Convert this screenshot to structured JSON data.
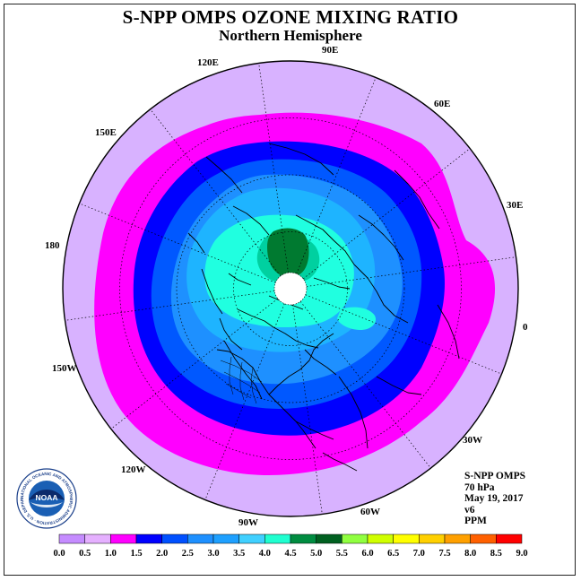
{
  "title": "S-NPP OMPS OZONE MIXING RATIO",
  "subtitle": "Northern Hemisphere",
  "logo_text": "NOAA",
  "logo_ring_text": "NATIONAL OCEANIC AND ATMOSPHERIC ADMINISTRATION · U.S. DEPARTMENT OF COMMERCE",
  "longitude_labels": {
    "lon_90E": "90E",
    "lon_60E": "60E",
    "lon_30E": "30E",
    "lon_0": "0",
    "lon_30W": "30W",
    "lon_60W": "60W",
    "lon_90W": "90W",
    "lon_120W": "120W",
    "lon_150W": "150W",
    "lon_180": "180",
    "lon_150E": "150E",
    "lon_120E": "120E"
  },
  "info": {
    "instrument": "S-NPP OMPS",
    "level": "70 hPa",
    "date": "May 19, 2017",
    "version": "v6",
    "units": "PPM"
  },
  "colorbar": {
    "tick_labels": [
      "0.0",
      "0.5",
      "1.0",
      "1.5",
      "2.0",
      "2.5",
      "3.0",
      "3.5",
      "4.0",
      "4.5",
      "5.0",
      "5.5",
      "6.0",
      "6.5",
      "7.0",
      "7.5",
      "8.0",
      "8.5",
      "9.0"
    ],
    "colors": [
      "#c58cff",
      "#e5b0ff",
      "#ff00ff",
      "#0000ff",
      "#0050ff",
      "#1e90ff",
      "#1ea0ff",
      "#40d0ff",
      "#20ffd0",
      "#008c40",
      "#006020",
      "#90ff40",
      "#d0ff00",
      "#ffff00",
      "#ffd000",
      "#ffa000",
      "#ff6000",
      "#ff0000",
      "#805030"
    ]
  },
  "map_fill": {
    "bin_1_0": "#d8b2ff",
    "bin_1_5": "#ff00ff",
    "bin_2_0": "#0000ff",
    "bin_2_5": "#0058ff",
    "bin_3_0": "#1e90ff",
    "bin_3_5": "#1eb4ff",
    "bin_4_0": "#20ffe0",
    "bin_4_5": "#00d0a0",
    "bin_5_0": "#007a30",
    "no_data": "#ffffff"
  }
}
